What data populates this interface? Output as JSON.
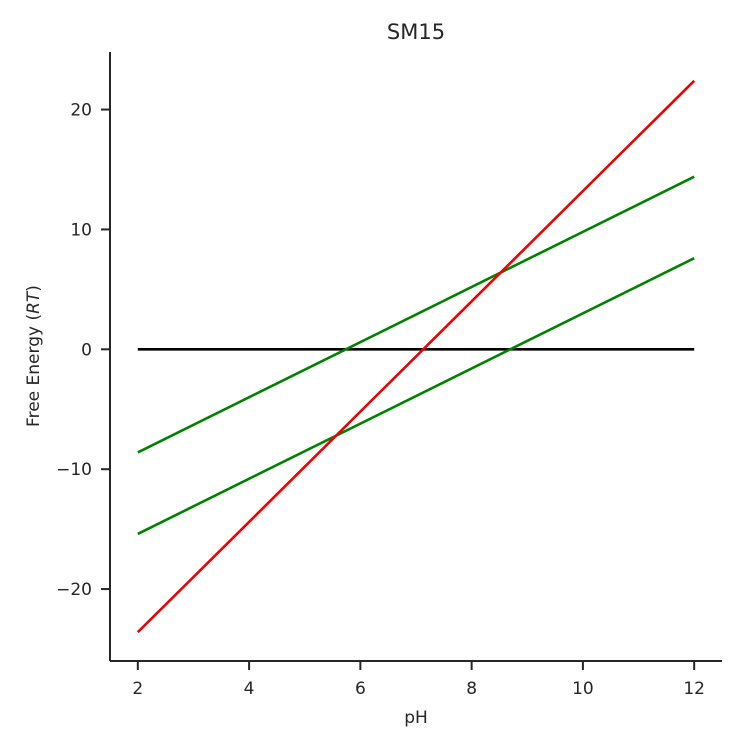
{
  "chart_data": {
    "type": "line",
    "title": "SM15",
    "xlabel": "pH",
    "ylabel": "Free Energy (RT)",
    "ylabel_prefix": "Free Energy (",
    "ylabel_italic": "RT",
    "ylabel_suffix": ")",
    "xlim": [
      1.5,
      12.5
    ],
    "ylim": [
      -26,
      24.8
    ],
    "xticks": [
      2,
      4,
      6,
      8,
      10,
      12
    ],
    "yticks": [
      -20,
      -10,
      0,
      10,
      20
    ],
    "xtick_labels": [
      "2",
      "4",
      "6",
      "8",
      "10",
      "12"
    ],
    "ytick_labels": [
      "−20",
      "−10",
      "0",
      "10",
      "20"
    ],
    "grid": false,
    "series": [
      {
        "color": "#000000",
        "x": [
          2,
          12
        ],
        "y": [
          0,
          0
        ]
      },
      {
        "color": "#008000",
        "x": [
          2,
          12
        ],
        "y": [
          -8.6,
          14.4
        ]
      },
      {
        "color": "#008000",
        "x": [
          2,
          12
        ],
        "y": [
          -15.4,
          7.6
        ]
      },
      {
        "color": "#ee0000",
        "x": [
          2,
          12
        ],
        "y": [
          -23.6,
          22.4
        ]
      }
    ]
  }
}
